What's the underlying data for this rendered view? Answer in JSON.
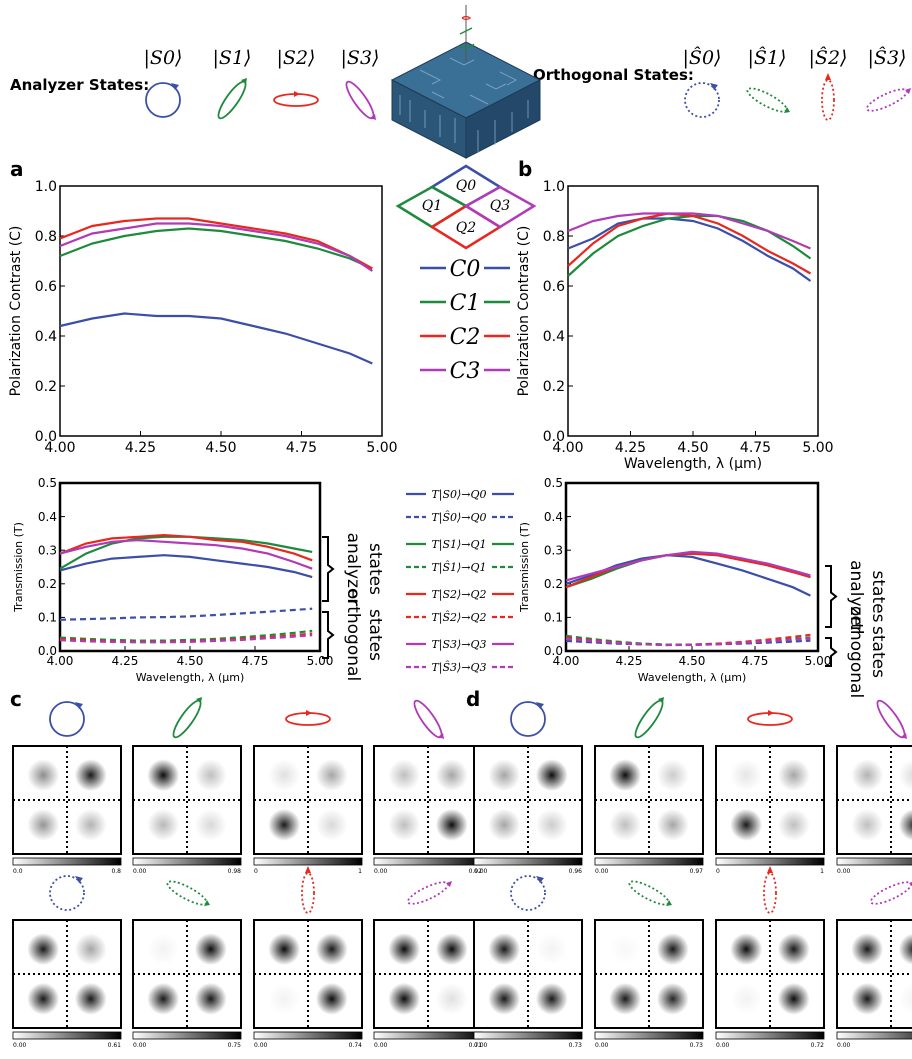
{
  "header": {
    "analyzer_label": "Analyzer States:",
    "orthogonal_label": "Orthogonal States:",
    "analyzer_states": [
      "|S0⟩",
      "|S1⟩",
      "|S2⟩",
      "|S3⟩"
    ],
    "orthogonal_states": [
      "|Ŝ0⟩",
      "|Ŝ1⟩",
      "|Ŝ2⟩",
      "|Ŝ3⟩"
    ]
  },
  "colors": {
    "s0": "#3b4fa8",
    "s1": "#1e8a3c",
    "s2": "#e8281e",
    "s3": "#b03ab8"
  },
  "quadrants": [
    "Q0",
    "Q1",
    "Q2",
    "Q3"
  ],
  "panel_labels": [
    "a",
    "b",
    "c",
    "d"
  ],
  "legend_contrast": [
    "C0",
    "C1",
    "C2",
    "C3"
  ],
  "legend_transmission": [
    {
      "name": "T|S0⟩→Q0",
      "color": "s0",
      "dash": false
    },
    {
      "name": "T|Ŝ0⟩→Q0",
      "color": "s0",
      "dash": true
    },
    {
      "name": "T|S1⟩→Q1",
      "color": "s1",
      "dash": false
    },
    {
      "name": "T|Ŝ1⟩→Q1",
      "color": "s1",
      "dash": true
    },
    {
      "name": "T|S2⟩→Q2",
      "color": "s2",
      "dash": false
    },
    {
      "name": "T|Ŝ2⟩→Q2",
      "color": "s2",
      "dash": true
    },
    {
      "name": "T|S3⟩→Q3",
      "color": "s3",
      "dash": false
    },
    {
      "name": "T|Ŝ3⟩→Q3",
      "color": "s3",
      "dash": true
    }
  ],
  "chart_data": [
    {
      "id": "a-contrast",
      "type": "line",
      "ylabel": "Polarization Contrast (C)",
      "xlabel": "",
      "xlim": [
        4.0,
        5.0
      ],
      "ylim": [
        0.0,
        1.0
      ],
      "xticks": [
        "4.00",
        "4.25",
        "4.50",
        "4.75",
        "5.00"
      ],
      "yticks": [
        "0.0",
        "0.2",
        "0.4",
        "0.6",
        "0.8",
        "1.0"
      ],
      "x": [
        4.0,
        4.1,
        4.2,
        4.3,
        4.4,
        4.5,
        4.6,
        4.7,
        4.8,
        4.9,
        4.97
      ],
      "series": [
        {
          "name": "C0",
          "color": "s0",
          "values": [
            0.44,
            0.47,
            0.49,
            0.48,
            0.48,
            0.47,
            0.44,
            0.41,
            0.37,
            0.33,
            0.29
          ]
        },
        {
          "name": "C1",
          "color": "s1",
          "values": [
            0.72,
            0.77,
            0.8,
            0.82,
            0.83,
            0.82,
            0.8,
            0.78,
            0.75,
            0.71,
            0.67
          ]
        },
        {
          "name": "C2",
          "color": "s2",
          "values": [
            0.79,
            0.84,
            0.86,
            0.87,
            0.87,
            0.85,
            0.83,
            0.81,
            0.78,
            0.72,
            0.67
          ]
        },
        {
          "name": "C3",
          "color": "s3",
          "values": [
            0.76,
            0.81,
            0.83,
            0.85,
            0.85,
            0.84,
            0.82,
            0.8,
            0.77,
            0.72,
            0.66
          ]
        }
      ]
    },
    {
      "id": "b-contrast",
      "type": "line",
      "ylabel": "Polarization Contrast (C)",
      "xlabel": "Wavelength, λ (μm)",
      "xlim": [
        4.0,
        5.0
      ],
      "ylim": [
        0.0,
        1.0
      ],
      "xticks": [
        "4.00",
        "4.25",
        "4.50",
        "4.75",
        "5.00"
      ],
      "yticks": [
        "0.0",
        "0.2",
        "0.4",
        "0.6",
        "0.8",
        "1.0"
      ],
      "x": [
        4.0,
        4.1,
        4.2,
        4.3,
        4.4,
        4.5,
        4.6,
        4.7,
        4.8,
        4.9,
        4.97
      ],
      "series": [
        {
          "name": "C0",
          "color": "s0",
          "values": [
            0.75,
            0.79,
            0.85,
            0.87,
            0.87,
            0.86,
            0.83,
            0.78,
            0.72,
            0.67,
            0.62
          ]
        },
        {
          "name": "C1",
          "color": "s1",
          "values": [
            0.64,
            0.73,
            0.8,
            0.84,
            0.87,
            0.88,
            0.88,
            0.86,
            0.82,
            0.76,
            0.71
          ]
        },
        {
          "name": "C2",
          "color": "s2",
          "values": [
            0.68,
            0.77,
            0.84,
            0.87,
            0.89,
            0.88,
            0.85,
            0.8,
            0.74,
            0.69,
            0.65
          ]
        },
        {
          "name": "C3",
          "color": "s3",
          "values": [
            0.82,
            0.86,
            0.88,
            0.89,
            0.89,
            0.89,
            0.88,
            0.85,
            0.82,
            0.78,
            0.75
          ]
        }
      ]
    },
    {
      "id": "a-transmission",
      "type": "line",
      "ylabel": "Transmission (T)",
      "xlabel": "Wavelength, λ (μm)",
      "xlim": [
        4.0,
        5.0
      ],
      "ylim": [
        0.0,
        0.5
      ],
      "xticks": [
        "4.00",
        "4.25",
        "4.50",
        "4.75",
        "5.00"
      ],
      "yticks": [
        "0.0",
        "0.1",
        "0.2",
        "0.3",
        "0.4",
        "0.5"
      ],
      "x": [
        4.0,
        4.1,
        4.2,
        4.3,
        4.4,
        4.5,
        4.6,
        4.7,
        4.8,
        4.9,
        4.97
      ],
      "series": [
        {
          "name": "T|S0⟩→Q0",
          "color": "s0",
          "dash": false,
          "values": [
            0.24,
            0.26,
            0.275,
            0.28,
            0.285,
            0.28,
            0.27,
            0.26,
            0.25,
            0.235,
            0.22
          ]
        },
        {
          "name": "T|S1⟩→Q1",
          "color": "s1",
          "dash": false,
          "values": [
            0.245,
            0.29,
            0.32,
            0.335,
            0.34,
            0.34,
            0.335,
            0.33,
            0.32,
            0.305,
            0.295
          ]
        },
        {
          "name": "T|S2⟩→Q2",
          "color": "s2",
          "dash": false,
          "values": [
            0.29,
            0.32,
            0.335,
            0.34,
            0.345,
            0.34,
            0.33,
            0.325,
            0.31,
            0.29,
            0.27
          ]
        },
        {
          "name": "T|S3⟩→Q3",
          "color": "s3",
          "dash": false,
          "values": [
            0.29,
            0.31,
            0.325,
            0.33,
            0.325,
            0.32,
            0.315,
            0.305,
            0.29,
            0.265,
            0.245
          ]
        },
        {
          "name": "T|Ŝ0⟩→Q0",
          "color": "s0",
          "dash": true,
          "values": [
            0.093,
            0.095,
            0.097,
            0.1,
            0.101,
            0.103,
            0.107,
            0.112,
            0.117,
            0.122,
            0.126
          ]
        },
        {
          "name": "T|Ŝ1⟩→Q1",
          "color": "s1",
          "dash": true,
          "values": [
            0.04,
            0.036,
            0.033,
            0.031,
            0.031,
            0.033,
            0.036,
            0.041,
            0.047,
            0.054,
            0.06
          ]
        },
        {
          "name": "T|Ŝ2⟩→Q2",
          "color": "s2",
          "dash": true,
          "values": [
            0.036,
            0.032,
            0.029,
            0.027,
            0.027,
            0.029,
            0.032,
            0.036,
            0.041,
            0.047,
            0.052
          ]
        },
        {
          "name": "T|Ŝ3⟩→Q3",
          "color": "s3",
          "dash": true,
          "values": [
            0.032,
            0.029,
            0.027,
            0.026,
            0.026,
            0.027,
            0.03,
            0.033,
            0.038,
            0.043,
            0.047
          ]
        }
      ]
    },
    {
      "id": "b-transmission",
      "type": "line",
      "ylabel": "Transmission (T)",
      "xlabel": "Wavelength, λ (μm)",
      "xlim": [
        4.0,
        5.0
      ],
      "ylim": [
        0.0,
        0.5
      ],
      "xticks": [
        "4.00",
        "4.25",
        "4.50",
        "4.75",
        "5.00"
      ],
      "yticks": [
        "0.0",
        "0.1",
        "0.2",
        "0.3",
        "0.4",
        "0.5"
      ],
      "x": [
        4.0,
        4.1,
        4.2,
        4.3,
        4.4,
        4.5,
        4.6,
        4.7,
        4.8,
        4.9,
        4.97
      ],
      "series": [
        {
          "name": "T|S0⟩→Q0",
          "color": "s0",
          "dash": false,
          "values": [
            0.2,
            0.225,
            0.255,
            0.275,
            0.285,
            0.28,
            0.26,
            0.24,
            0.215,
            0.19,
            0.165
          ]
        },
        {
          "name": "T|S1⟩→Q1",
          "color": "s1",
          "dash": false,
          "values": [
            0.19,
            0.215,
            0.245,
            0.27,
            0.285,
            0.29,
            0.285,
            0.275,
            0.255,
            0.235,
            0.22
          ]
        },
        {
          "name": "T|S2⟩→Q2",
          "color": "s2",
          "dash": false,
          "values": [
            0.19,
            0.22,
            0.25,
            0.27,
            0.285,
            0.29,
            0.285,
            0.27,
            0.255,
            0.235,
            0.22
          ]
        },
        {
          "name": "T|S3⟩→Q3",
          "color": "s3",
          "dash": false,
          "values": [
            0.21,
            0.23,
            0.25,
            0.27,
            0.285,
            0.295,
            0.29,
            0.275,
            0.26,
            0.24,
            0.225
          ]
        },
        {
          "name": "T|Ŝ0⟩→Q0",
          "color": "s0",
          "dash": true,
          "values": [
            0.03,
            0.026,
            0.022,
            0.02,
            0.019,
            0.019,
            0.02,
            0.022,
            0.025,
            0.028,
            0.031
          ]
        },
        {
          "name": "T|Ŝ1⟩→Q1",
          "color": "s1",
          "dash": true,
          "values": [
            0.045,
            0.036,
            0.028,
            0.022,
            0.019,
            0.019,
            0.021,
            0.025,
            0.03,
            0.036,
            0.04
          ]
        },
        {
          "name": "T|Ŝ2⟩→Q2",
          "color": "s2",
          "dash": true,
          "values": [
            0.04,
            0.032,
            0.025,
            0.02,
            0.018,
            0.019,
            0.022,
            0.027,
            0.034,
            0.042,
            0.048
          ]
        },
        {
          "name": "T|Ŝ3⟩→Q3",
          "color": "s3",
          "dash": true,
          "values": [
            0.036,
            0.03,
            0.024,
            0.02,
            0.018,
            0.018,
            0.02,
            0.024,
            0.029,
            0.034,
            0.037
          ]
        }
      ]
    },
    {
      "id": "c-d-intensity-maps",
      "type": "heatmap",
      "quadrant_order": [
        "top-left",
        "top-right",
        "bottom-left",
        "bottom-right"
      ],
      "panels": [
        {
          "panel": "c",
          "row": "analyzer",
          "state": "s0",
          "quad": [
            0.45,
            0.9,
            0.42,
            0.3
          ],
          "scale": [
            "0.0",
            "0.8"
          ]
        },
        {
          "panel": "c",
          "row": "analyzer",
          "state": "s1",
          "quad": [
            0.95,
            0.25,
            0.28,
            0.15
          ],
          "scale": [
            "0.00",
            "0.98"
          ]
        },
        {
          "panel": "c",
          "row": "analyzer",
          "state": "s2",
          "quad": [
            0.12,
            0.35,
            0.9,
            0.15
          ],
          "scale": [
            "0",
            "1"
          ]
        },
        {
          "panel": "c",
          "row": "analyzer",
          "state": "s3",
          "quad": [
            0.25,
            0.35,
            0.25,
            0.95
          ],
          "scale": [
            "0.00",
            "0.92"
          ]
        },
        {
          "panel": "c",
          "row": "orthogonal",
          "state": "s0",
          "quad": [
            0.9,
            0.35,
            0.9,
            0.9
          ],
          "scale": [
            "0.00",
            "0.61"
          ]
        },
        {
          "panel": "c",
          "row": "orthogonal",
          "state": "s1",
          "quad": [
            0.05,
            0.95,
            0.9,
            0.9
          ],
          "scale": [
            "0.00",
            "0.75"
          ]
        },
        {
          "panel": "c",
          "row": "orthogonal",
          "state": "s2",
          "quad": [
            0.95,
            0.9,
            0.05,
            0.95
          ],
          "scale": [
            "0.00",
            "0.74"
          ]
        },
        {
          "panel": "c",
          "row": "orthogonal",
          "state": "s3",
          "quad": [
            0.95,
            0.95,
            0.95,
            0.12
          ],
          "scale": [
            "0.00",
            "0.71"
          ]
        },
        {
          "panel": "d",
          "row": "analyzer",
          "state": "s0",
          "quad": [
            0.35,
            0.95,
            0.35,
            0.2
          ],
          "scale": [
            "0.00",
            "0.96"
          ]
        },
        {
          "panel": "d",
          "row": "analyzer",
          "state": "s1",
          "quad": [
            0.95,
            0.2,
            0.25,
            0.35
          ],
          "scale": [
            "0.00",
            "0.97"
          ]
        },
        {
          "panel": "d",
          "row": "analyzer",
          "state": "s2",
          "quad": [
            0.1,
            0.35,
            0.9,
            0.25
          ],
          "scale": [
            "0",
            "1"
          ]
        },
        {
          "panel": "d",
          "row": "analyzer",
          "state": "s3",
          "quad": [
            0.3,
            0.15,
            0.25,
            0.9
          ],
          "scale": [
            "0.00",
            "0.97"
          ]
        },
        {
          "panel": "d",
          "row": "orthogonal",
          "state": "s0",
          "quad": [
            0.9,
            0.05,
            0.9,
            0.9
          ],
          "scale": [
            "0.00",
            "0.73"
          ]
        },
        {
          "panel": "d",
          "row": "orthogonal",
          "state": "s1",
          "quad": [
            0.03,
            0.9,
            0.9,
            0.85
          ],
          "scale": [
            "0.00",
            "0.73"
          ]
        },
        {
          "panel": "d",
          "row": "orthogonal",
          "state": "s2",
          "quad": [
            0.95,
            0.9,
            0.05,
            0.95
          ],
          "scale": [
            "0.00",
            "0.72"
          ]
        },
        {
          "panel": "d",
          "row": "orthogonal",
          "state": "s3",
          "quad": [
            0.9,
            0.95,
            0.9,
            0.05
          ],
          "scale": [
            "0.00",
            "0.74"
          ]
        }
      ]
    }
  ],
  "brackets": {
    "analyzer": [
      "analyzer",
      "states"
    ],
    "orthogonal": [
      "orthogonal",
      "states"
    ]
  }
}
